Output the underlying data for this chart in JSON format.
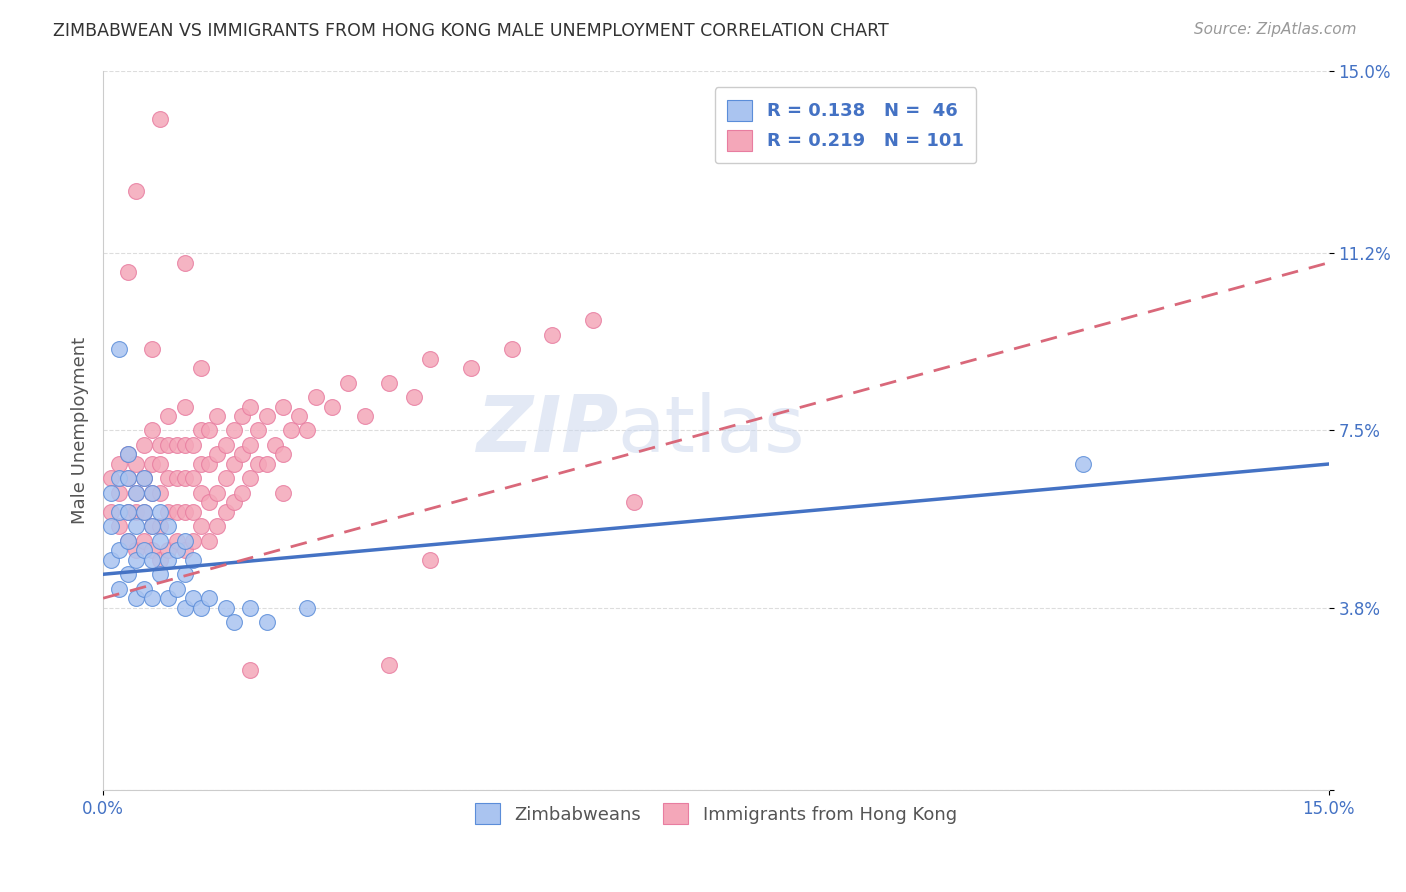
{
  "title": "ZIMBABWEAN VS IMMIGRANTS FROM HONG KONG MALE UNEMPLOYMENT CORRELATION CHART",
  "source": "Source: ZipAtlas.com",
  "ylabel": "Male Unemployment",
  "xlim": [
    0,
    0.15
  ],
  "ylim": [
    0,
    0.15
  ],
  "ytick_values": [
    0.0,
    0.038,
    0.075,
    0.112,
    0.15
  ],
  "ytick_labels": [
    "",
    "3.8%",
    "7.5%",
    "11.2%",
    "15.0%"
  ],
  "watermark_part1": "ZIP",
  "watermark_part2": "atlas",
  "series1_label": "Zimbabweans",
  "series2_label": "Immigrants from Hong Kong",
  "series1_color": "#aac4f0",
  "series2_color": "#f4a7b9",
  "series1_edge_color": "#5b8dd9",
  "series2_edge_color": "#e87da0",
  "trend1_color": "#4472c4",
  "trend2_color": "#d9687a",
  "background_color": "#ffffff",
  "grid_color": "#dddddd",
  "title_color": "#333333",
  "tick_label_color": "#4472c4",
  "legend_label1": "R = 0.138   N =  46",
  "legend_label2": "R = 0.219   N = 101",
  "trend1_x0": 0.0,
  "trend1_y0": 0.045,
  "trend1_x1": 0.15,
  "trend1_y1": 0.068,
  "trend2_x0": 0.0,
  "trend2_y0": 0.04,
  "trend2_x1": 0.15,
  "trend2_y1": 0.11,
  "series1_x": [
    0.001,
    0.001,
    0.001,
    0.002,
    0.002,
    0.002,
    0.002,
    0.003,
    0.003,
    0.003,
    0.003,
    0.003,
    0.004,
    0.004,
    0.004,
    0.004,
    0.005,
    0.005,
    0.005,
    0.005,
    0.006,
    0.006,
    0.006,
    0.006,
    0.007,
    0.007,
    0.007,
    0.008,
    0.008,
    0.008,
    0.009,
    0.009,
    0.01,
    0.01,
    0.01,
    0.011,
    0.011,
    0.012,
    0.013,
    0.015,
    0.016,
    0.018,
    0.02,
    0.025,
    0.12,
    0.002
  ],
  "series1_y": [
    0.048,
    0.055,
    0.062,
    0.042,
    0.05,
    0.058,
    0.065,
    0.045,
    0.052,
    0.058,
    0.065,
    0.07,
    0.04,
    0.048,
    0.055,
    0.062,
    0.042,
    0.05,
    0.058,
    0.065,
    0.04,
    0.048,
    0.055,
    0.062,
    0.045,
    0.052,
    0.058,
    0.04,
    0.048,
    0.055,
    0.042,
    0.05,
    0.038,
    0.045,
    0.052,
    0.04,
    0.048,
    0.038,
    0.04,
    0.038,
    0.035,
    0.038,
    0.035,
    0.038,
    0.068,
    0.092
  ],
  "series2_x": [
    0.001,
    0.001,
    0.002,
    0.002,
    0.002,
    0.003,
    0.003,
    0.003,
    0.003,
    0.004,
    0.004,
    0.004,
    0.004,
    0.005,
    0.005,
    0.005,
    0.005,
    0.006,
    0.006,
    0.006,
    0.006,
    0.006,
    0.007,
    0.007,
    0.007,
    0.007,
    0.007,
    0.008,
    0.008,
    0.008,
    0.008,
    0.009,
    0.009,
    0.009,
    0.009,
    0.01,
    0.01,
    0.01,
    0.01,
    0.011,
    0.011,
    0.011,
    0.011,
    0.012,
    0.012,
    0.012,
    0.012,
    0.013,
    0.013,
    0.013,
    0.013,
    0.014,
    0.014,
    0.014,
    0.014,
    0.015,
    0.015,
    0.015,
    0.016,
    0.016,
    0.016,
    0.017,
    0.017,
    0.017,
    0.018,
    0.018,
    0.018,
    0.019,
    0.019,
    0.02,
    0.02,
    0.021,
    0.022,
    0.022,
    0.023,
    0.024,
    0.025,
    0.026,
    0.028,
    0.03,
    0.032,
    0.035,
    0.038,
    0.04,
    0.045,
    0.05,
    0.055,
    0.06,
    0.035,
    0.04,
    0.003,
    0.004,
    0.007,
    0.01,
    0.012,
    0.018,
    0.006,
    0.008,
    0.01,
    0.065,
    0.022
  ],
  "series2_y": [
    0.058,
    0.065,
    0.055,
    0.062,
    0.068,
    0.052,
    0.058,
    0.065,
    0.07,
    0.05,
    0.058,
    0.062,
    0.068,
    0.052,
    0.058,
    0.065,
    0.072,
    0.05,
    0.055,
    0.062,
    0.068,
    0.075,
    0.048,
    0.055,
    0.062,
    0.068,
    0.072,
    0.05,
    0.058,
    0.065,
    0.072,
    0.052,
    0.058,
    0.065,
    0.072,
    0.05,
    0.058,
    0.065,
    0.072,
    0.052,
    0.058,
    0.065,
    0.072,
    0.055,
    0.062,
    0.068,
    0.075,
    0.052,
    0.06,
    0.068,
    0.075,
    0.055,
    0.062,
    0.07,
    0.078,
    0.058,
    0.065,
    0.072,
    0.06,
    0.068,
    0.075,
    0.062,
    0.07,
    0.078,
    0.065,
    0.072,
    0.08,
    0.068,
    0.075,
    0.068,
    0.078,
    0.072,
    0.07,
    0.08,
    0.075,
    0.078,
    0.075,
    0.082,
    0.08,
    0.085,
    0.078,
    0.085,
    0.082,
    0.09,
    0.088,
    0.092,
    0.095,
    0.098,
    0.026,
    0.048,
    0.108,
    0.125,
    0.14,
    0.11,
    0.088,
    0.025,
    0.092,
    0.078,
    0.08,
    0.06,
    0.062
  ]
}
